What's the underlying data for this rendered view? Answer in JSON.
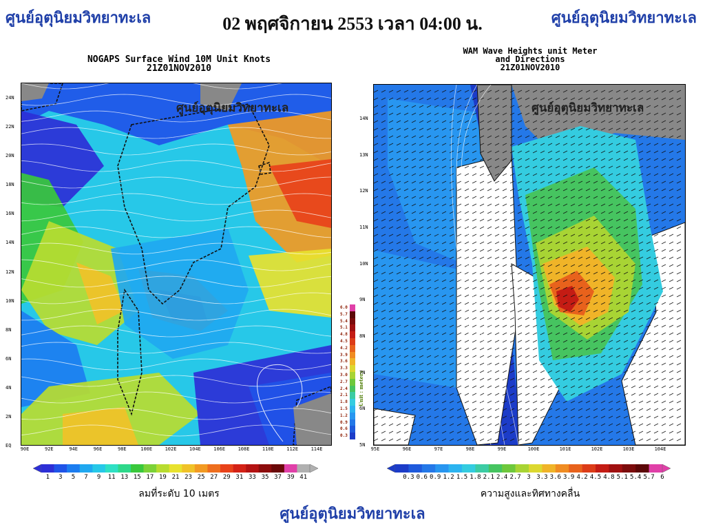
{
  "header": {
    "left_brand": "ศูนย์อุตุนิยมวิทยาทะเล",
    "right_brand": "ศูนย์อุตุนิยมวิทยาทะเล",
    "datetime": "02 พฤศจิกายน 2553 เวลา 04:00 น."
  },
  "footer": {
    "brand": "ศูนย์อุตุนิยมวิทยาทะเล"
  },
  "wind_map": {
    "title_line1": "NOGAPS Surface Wind 10M Unit Knots",
    "title_line2": "21Z01NOV2010",
    "watermark": "ศูนย์อุตุนิยมวิทยาทะเล",
    "y_ticks": [
      "24N",
      "22N",
      "20N",
      "18N",
      "16N",
      "14N",
      "12N",
      "10N",
      "8N",
      "6N",
      "4N",
      "2N",
      "EQ"
    ],
    "x_ticks": [
      "90E",
      "92E",
      "94E",
      "96E",
      "98E",
      "100E",
      "102E",
      "104E",
      "106E",
      "108E",
      "110E",
      "112E",
      "114E"
    ],
    "colorbar_labels": [
      "1",
      "3",
      "5",
      "7",
      "9",
      "11",
      "13",
      "15",
      "17",
      "19",
      "21",
      "23",
      "25",
      "27",
      "29",
      "31",
      "33",
      "35",
      "37",
      "39",
      "41"
    ],
    "colorbar_caption": "ลมที่ระดับ 10 เมตร",
    "colors": [
      "#2d2fd6",
      "#1f54e8",
      "#1c7df0",
      "#20a8f0",
      "#27c8e8",
      "#2fe0c4",
      "#2ed88a",
      "#3ac83c",
      "#7cd238",
      "#b8dc30",
      "#e8e22e",
      "#f0c228",
      "#f29a22",
      "#ee6e1e",
      "#e8421a",
      "#d42216",
      "#b41212",
      "#8c0c0c",
      "#6a0808",
      "#e040a8",
      "#b0b0b0"
    ]
  },
  "wave_map": {
    "title_line1": "WAM Wave Heights unit Meter",
    "title_line2": "and Directions",
    "title_line3": "21Z01NOV2010",
    "watermark": "ศูนย์อุตุนิยมวิทยาทะเล",
    "y_ticks": [
      "14N",
      "13N",
      "12N",
      "11N",
      "10N",
      "9N",
      "8N",
      "7N",
      "6N",
      "5N"
    ],
    "x_ticks": [
      "95E",
      "96E",
      "97E",
      "98E",
      "99E",
      "100E",
      "101E",
      "102E",
      "103E",
      "104E"
    ],
    "colorbar_labels": [
      "0.3",
      "0.6",
      "0.9",
      "1.2",
      "1.5",
      "1.8",
      "2.1",
      "2.4",
      "2.7",
      "3",
      "3.3",
      "3.6",
      "3.9",
      "4.2",
      "4.5",
      "4.8",
      "5.1",
      "5.4",
      "5.7",
      "6"
    ],
    "colorbar_caption": "ความสูงและทิศทางคลื่น",
    "vertical_bar_labels": [
      "6.0",
      "5.7",
      "5.4",
      "5.1",
      "4.8",
      "4.5",
      "4.2",
      "3.9",
      "3.6",
      "3.3",
      "3.0",
      "2.7",
      "2.4",
      "2.1",
      "1.8",
      "1.5",
      "1.2",
      "0.9",
      "0.6",
      "0.3"
    ],
    "vertical_unit": "Unit : meters",
    "colors": [
      "#1c3cc8",
      "#1f5adc",
      "#2478e8",
      "#2896f0",
      "#2cb4f0",
      "#34cce0",
      "#3ccca4",
      "#46c460",
      "#6ec83c",
      "#a8d434",
      "#dcd830",
      "#f0b428",
      "#f08c22",
      "#e8621c",
      "#dc3c18",
      "#c41c14",
      "#a01010",
      "#7c0c0c",
      "#5c0808",
      "#e040a8"
    ]
  }
}
